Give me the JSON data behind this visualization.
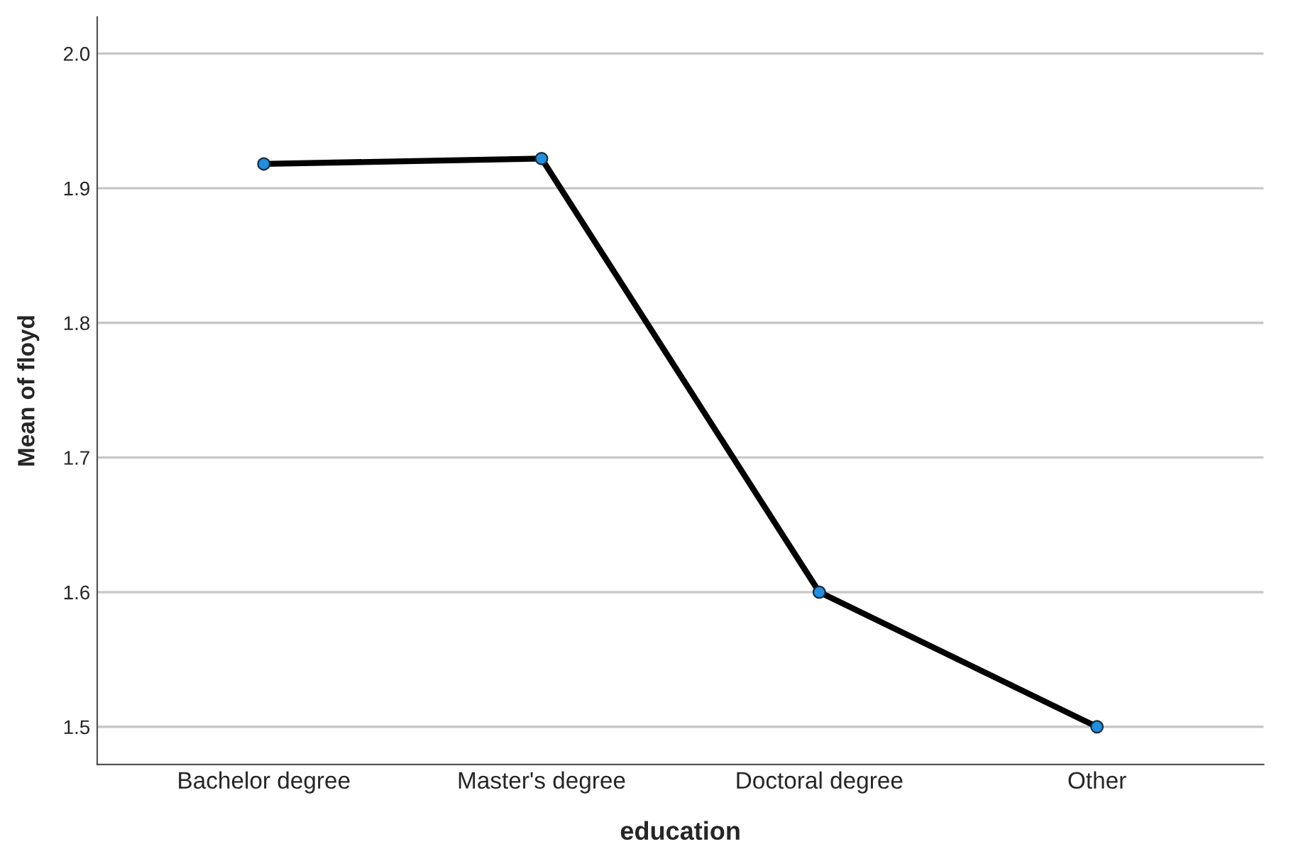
{
  "chart_data": {
    "type": "line",
    "xlabel": "education",
    "ylabel": "Mean of floyd",
    "categories": [
      "Bachelor degree",
      "Master's degree",
      "Doctoral degree",
      "Other"
    ],
    "series": [
      {
        "color": "#000000",
        "values": [
          1.918,
          1.922,
          1.6,
          1.5
        ]
      }
    ],
    "ylim": [
      1.472,
      2.027
    ],
    "yticks": [
      {
        "value": 1.5,
        "label": "1.5"
      },
      {
        "value": 1.6,
        "label": "1.6"
      },
      {
        "value": 1.7,
        "label": "1.7"
      },
      {
        "value": 1.8,
        "label": "1.8"
      },
      {
        "value": 1.9,
        "label": "1.9"
      },
      {
        "value": 2.0,
        "label": "2.0"
      }
    ],
    "grid": "y",
    "marker": "circle",
    "line_style": "solid"
  }
}
